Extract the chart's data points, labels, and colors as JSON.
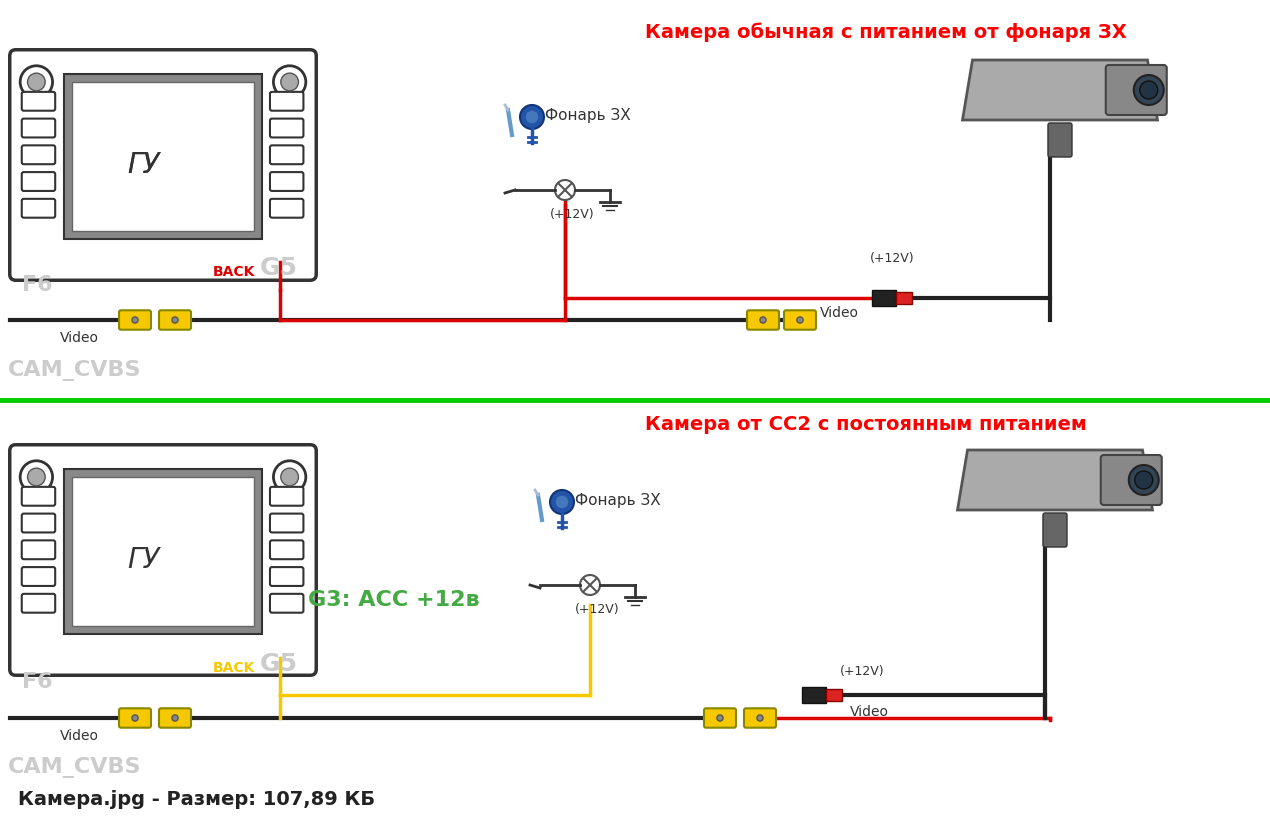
{
  "bg_color": "#ffffff",
  "title1": "Камера обычная с питанием от фонаря ЗХ",
  "title2": "Камера от СС2 с постоянным питанием",
  "footer": "Камера.jpg - Размер: 107,89 КБ",
  "divider_color": "#00cc00",
  "title_color": "#ff0000",
  "text_dark": "#333333",
  "text_gray": "#cccccc",
  "yellow": "#f5c800",
  "red": "#dd0000",
  "black": "#222222",
  "cam_cvbs_color": "#cccccc",
  "f6_color": "#cccccc",
  "g5_color": "#cccccc"
}
